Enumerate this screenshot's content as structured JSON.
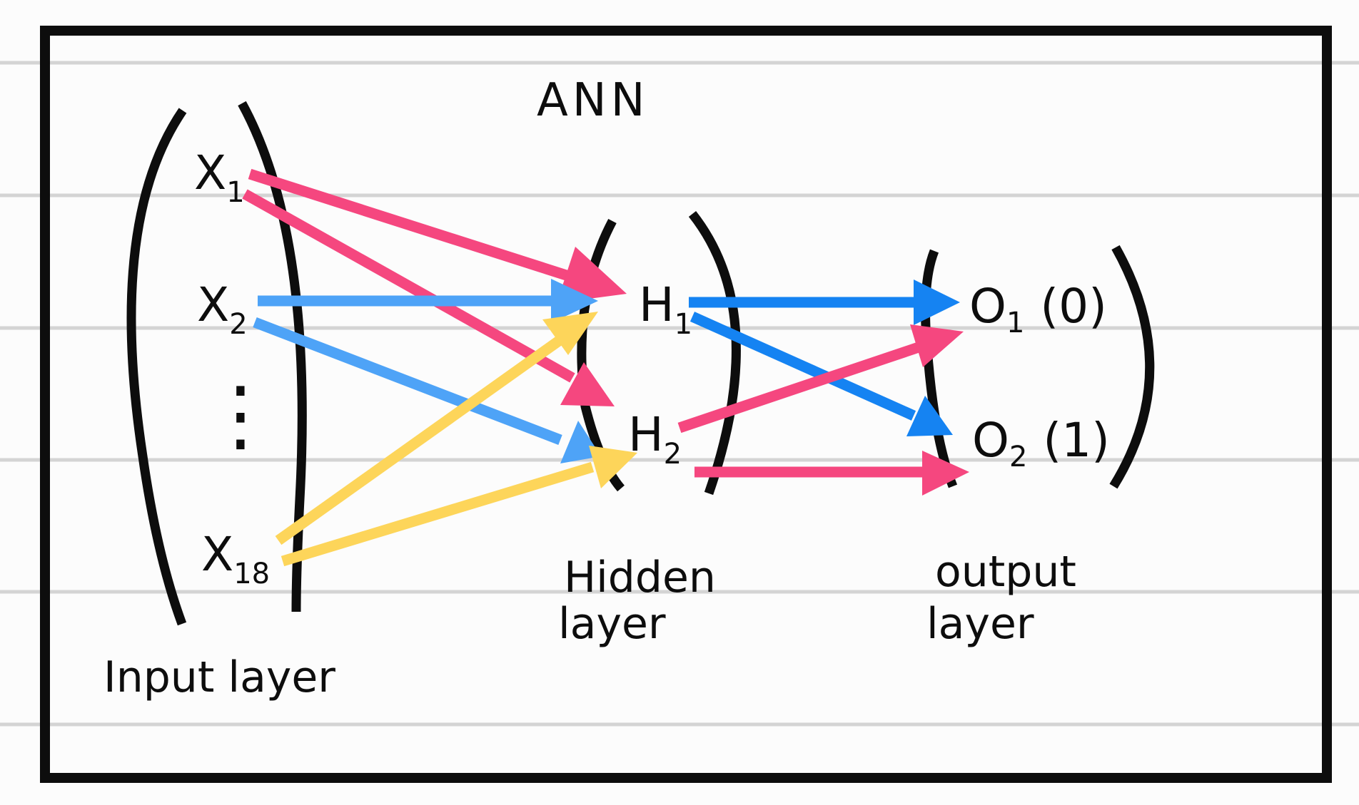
{
  "title": "ANN",
  "colors": {
    "background": "#fcfcfc",
    "ruled_line": "#d4d4d4",
    "frame": "#0d0d0d",
    "pink": "#f5477f",
    "light_blue": "#4ea3f7",
    "blue": "#1583f2",
    "yellow": "#fdd55a"
  },
  "input_layer": {
    "caption": "Input layer",
    "nodes": [
      {
        "base": "X",
        "sub": "1"
      },
      {
        "base": "X",
        "sub": "2"
      },
      {
        "base": "X",
        "sub": "18"
      }
    ],
    "ellipsis": "⋮"
  },
  "hidden_layer": {
    "caption_line1": "Hidden",
    "caption_line2": "layer",
    "nodes": [
      {
        "base": "H",
        "sub": "1"
      },
      {
        "base": "H",
        "sub": "2"
      }
    ]
  },
  "output_layer": {
    "caption_line1": "output",
    "caption_line2": "layer",
    "nodes": [
      {
        "base": "O",
        "sub": "1",
        "value": "(0)"
      },
      {
        "base": "O",
        "sub": "2",
        "value": "(1)"
      }
    ]
  },
  "connections": [
    {
      "from": "X1",
      "to": "H1",
      "color": "pink"
    },
    {
      "from": "X1",
      "to": "H2",
      "color": "pink"
    },
    {
      "from": "X2",
      "to": "H1",
      "color": "light_blue"
    },
    {
      "from": "X2",
      "to": "H2",
      "color": "light_blue"
    },
    {
      "from": "X18",
      "to": "H1",
      "color": "yellow"
    },
    {
      "from": "X18",
      "to": "H2",
      "color": "yellow"
    },
    {
      "from": "H1",
      "to": "O1",
      "color": "blue"
    },
    {
      "from": "H1",
      "to": "O2",
      "color": "blue"
    },
    {
      "from": "H2",
      "to": "O1",
      "color": "pink"
    },
    {
      "from": "H2",
      "to": "O2",
      "color": "pink"
    }
  ]
}
